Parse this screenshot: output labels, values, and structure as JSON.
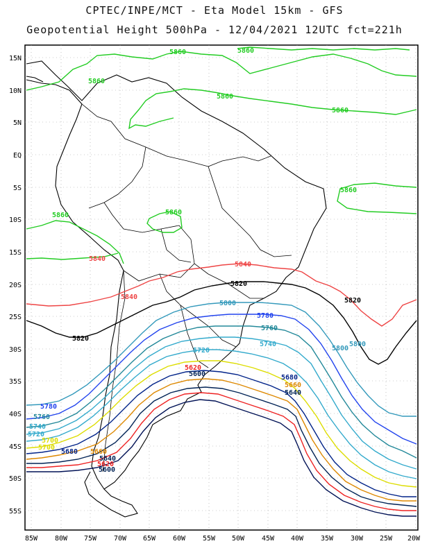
{
  "header": {
    "line1": "CPTEC/INPE/MCT -  Eta Model 15km - GFS",
    "line2": "Geopotential Height 500hPa - 12/04/2021 12UTC fct=221h"
  },
  "axes": {
    "lat_labels": [
      "15N",
      "10N",
      "5N",
      "EQ",
      "5S",
      "10S",
      "15S",
      "20S",
      "25S",
      "30S",
      "35S",
      "40S",
      "45S",
      "50S",
      "55S"
    ],
    "lon_labels": [
      "85W",
      "80W",
      "75W",
      "70W",
      "65W",
      "60W",
      "55W",
      "50W",
      "45W",
      "40W",
      "35W",
      "30W",
      "25W",
      "20W"
    ]
  },
  "contour_labels": [
    {
      "text": "5860",
      "color": "#22cc22"
    },
    {
      "text": "5860",
      "color": "#22cc22"
    },
    {
      "text": "5860",
      "color": "#22cc22"
    },
    {
      "text": "5860",
      "color": "#22cc22"
    },
    {
      "text": "5860",
      "color": "#22cc22"
    },
    {
      "text": "5860",
      "color": "#22cc22"
    },
    {
      "text": "5860",
      "color": "#22cc22"
    },
    {
      "text": "5860",
      "color": "#22cc22"
    },
    {
      "text": "5840",
      "color": "#ee4444"
    },
    {
      "text": "5840",
      "color": "#ee4444"
    },
    {
      "text": "5840",
      "color": "#ee4444"
    },
    {
      "text": "5820",
      "color": "#000000"
    },
    {
      "text": "5820",
      "color": "#000000"
    },
    {
      "text": "5820",
      "color": "#000000"
    },
    {
      "text": "5800",
      "color": "#3399bb"
    },
    {
      "text": "5800",
      "color": "#3399bb"
    },
    {
      "text": "5800",
      "color": "#3399bb"
    },
    {
      "text": "5780",
      "color": "#2244ee"
    },
    {
      "text": "5780",
      "color": "#2244ee"
    },
    {
      "text": "5760",
      "color": "#228899"
    },
    {
      "text": "5760",
      "color": "#228899"
    },
    {
      "text": "5740",
      "color": "#33aacc"
    },
    {
      "text": "5740",
      "color": "#33aacc"
    },
    {
      "text": "5720",
      "color": "#33aacc"
    },
    {
      "text": "5720",
      "color": "#33aacc"
    },
    {
      "text": "5700",
      "color": "#dddd00"
    },
    {
      "text": "5700",
      "color": "#dddd00"
    },
    {
      "text": "5680",
      "color": "#002288"
    },
    {
      "text": "5680",
      "color": "#002288"
    },
    {
      "text": "5660",
      "color": "#dd8800"
    },
    {
      "text": "5660",
      "color": "#dd8800"
    },
    {
      "text": "5640",
      "color": "#002255"
    },
    {
      "text": "5640",
      "color": "#002255"
    },
    {
      "text": "5620",
      "color": "#ee2222"
    },
    {
      "text": "5620",
      "color": "#ee2222"
    },
    {
      "text": "5600",
      "color": "#002255"
    },
    {
      "text": "5600",
      "color": "#002255"
    }
  ]
}
